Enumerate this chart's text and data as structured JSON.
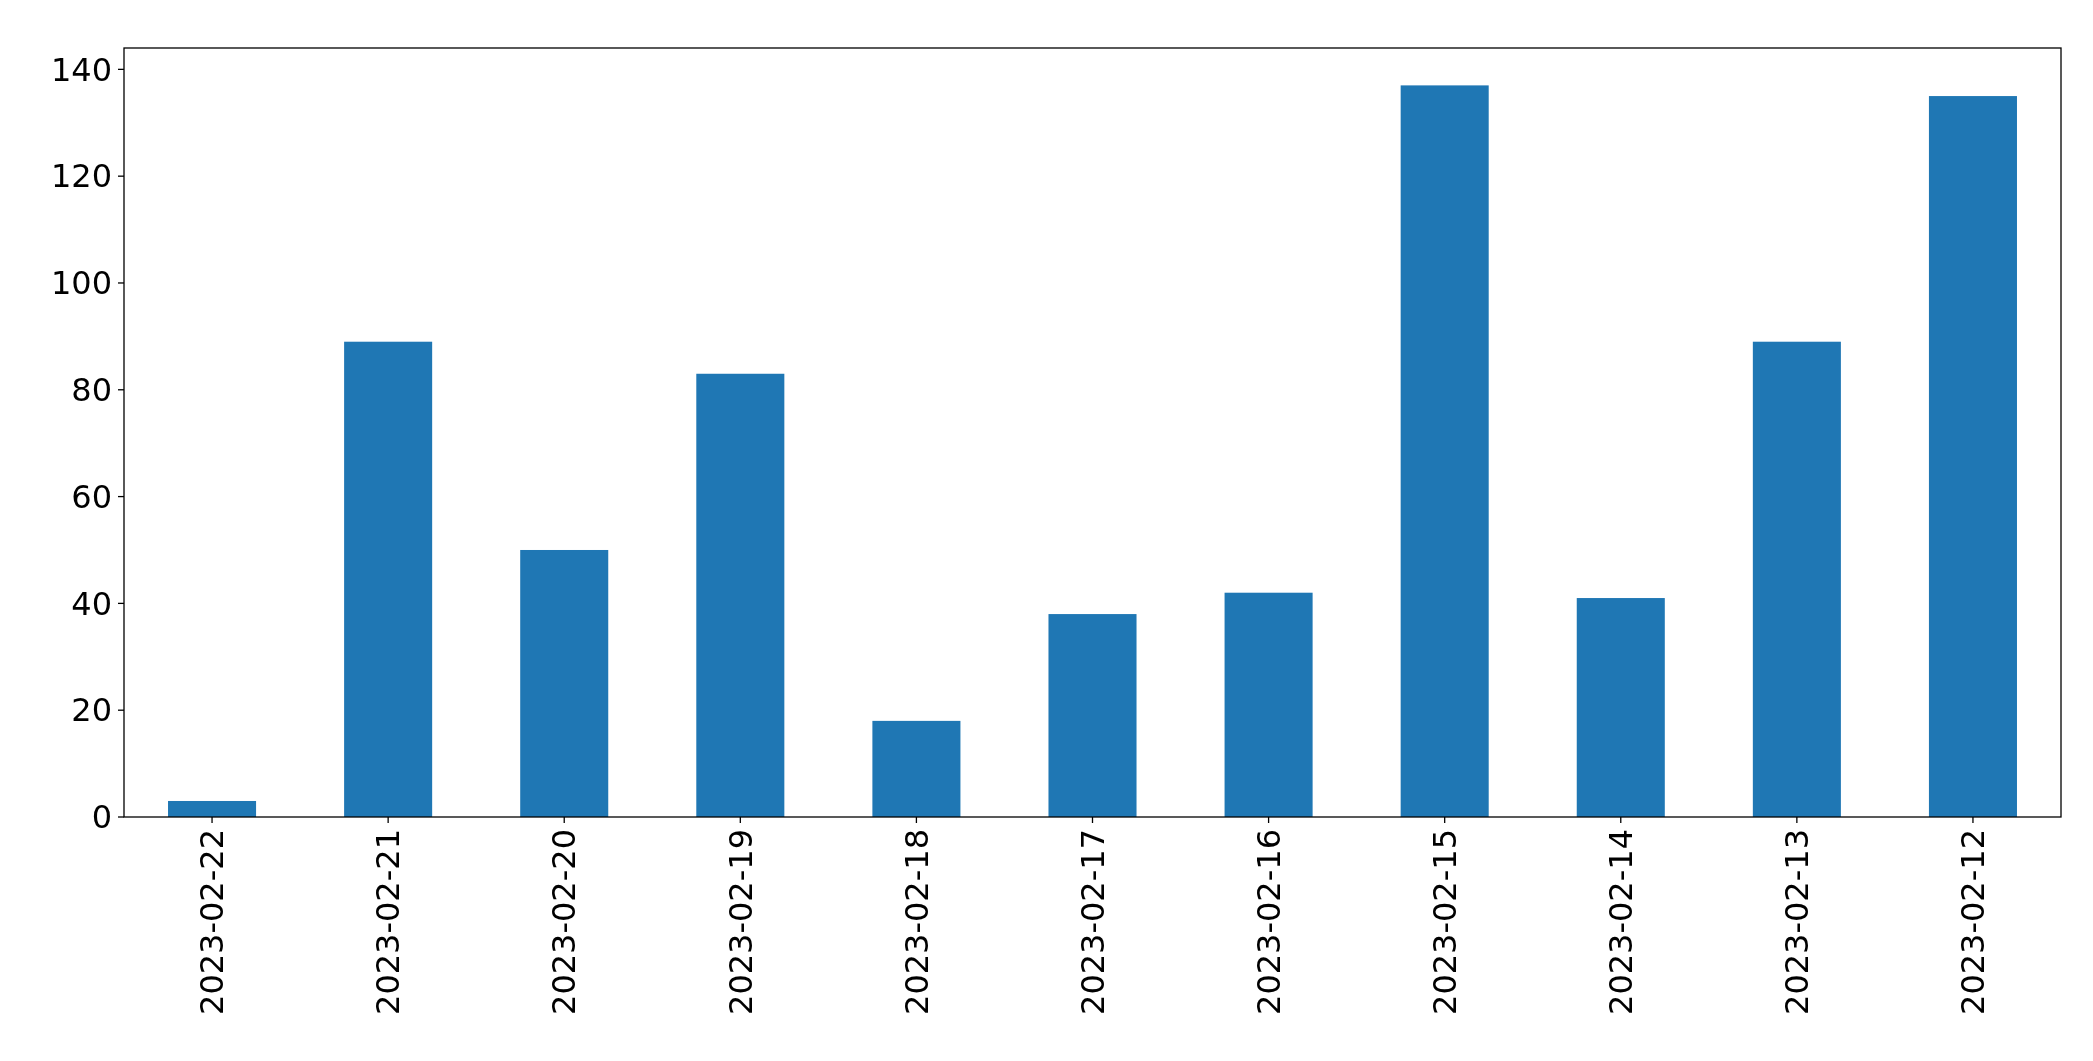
{
  "chart_data": {
    "type": "bar",
    "categories": [
      "2023-02-22",
      "2023-02-21",
      "2023-02-20",
      "2023-02-19",
      "2023-02-18",
      "2023-02-17",
      "2023-02-16",
      "2023-02-15",
      "2023-02-14",
      "2023-02-13",
      "2023-02-12"
    ],
    "values": [
      3,
      89,
      50,
      83,
      18,
      38,
      42,
      137,
      41,
      89,
      135
    ],
    "color": "#1f77b4",
    "ylim": [
      0,
      144
    ],
    "yticks": [
      0,
      20,
      40,
      60,
      80,
      100,
      120,
      140
    ]
  }
}
